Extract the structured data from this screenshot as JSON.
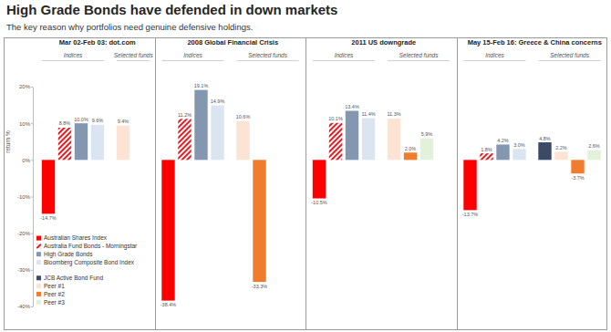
{
  "chart_data": {
    "type": "bar",
    "title": "High Grade Bonds have defended in down markets",
    "subtitle": "The key reason why portfolios need genuine defensive holdings.",
    "y_label": "return %",
    "categories": [
      "Mar 02-Feb 03: dot.com",
      "2008 Global Financial Crisis",
      "2011 US downgrade",
      "May 15-Feb 16: Greece & China concerns"
    ],
    "series": [
      {
        "name": "Australian Shares Index",
        "group": "Indices",
        "color": "#ff0000",
        "values": [
          -14.7,
          -38.4,
          -10.5,
          -13.7
        ],
        "value_labels": [
          "-14.7%",
          "-38.4%",
          "-10.5%",
          "-13.7%"
        ]
      },
      {
        "name": "Australia Fund Bonds - Morningstar",
        "group": "Indices",
        "color": "#e8191f",
        "marker": "hatch",
        "values": [
          8.8,
          11.2,
          10.1,
          1.8
        ],
        "value_labels": [
          "8.8%",
          "11.2%",
          "10.1%",
          "1.8%"
        ]
      },
      {
        "name": "High Grade Bonds",
        "group": "Indices",
        "color": "#8497b0",
        "values": [
          10.0,
          19.1,
          13.4,
          4.2
        ],
        "value_labels": [
          "10.0%",
          "19.1%",
          "13.4%",
          "4.2%"
        ]
      },
      {
        "name": "Bloomberg Composite Bond Index",
        "group": "Indices",
        "color": "#dbe5f1",
        "values": [
          9.6,
          14.9,
          11.4,
          3.0
        ],
        "value_labels": [
          "9.6%",
          "14.9%",
          "11.4%",
          "3.0%"
        ]
      },
      {
        "name": "JCB Active Bond Fund",
        "group": "Selected funds",
        "color": "#3b4a66",
        "values": [
          null,
          null,
          null,
          4.8
        ],
        "value_labels": [
          null,
          null,
          null,
          "4.8%"
        ]
      },
      {
        "name": "Peer #1",
        "group": "Selected funds",
        "color": "#fde3d4",
        "values": [
          9.4,
          10.6,
          11.3,
          2.2
        ],
        "value_labels": [
          "9.4%",
          "10.6%",
          "11.3%",
          "2.2%"
        ]
      },
      {
        "name": "Peer #2",
        "group": "Selected funds",
        "color": "#f07c2e",
        "values": [
          null,
          -33.3,
          2.0,
          -3.7
        ],
        "value_labels": [
          null,
          "-33.3%",
          "2.0%",
          "-3.7%"
        ]
      },
      {
        "name": "Peer #3",
        "group": "Selected funds",
        "color": "#e3f1da",
        "values": [
          null,
          null,
          5.9,
          2.6
        ],
        "value_labels": [
          null,
          null,
          "5.9%",
          "2.6%"
        ]
      }
    ],
    "ylim": [
      -40,
      20
    ],
    "yticks": [
      {
        "value": -40,
        "label": "-40%"
      },
      {
        "value": -30,
        "label": "-30%"
      },
      {
        "value": -20,
        "label": "-20%"
      },
      {
        "value": -10,
        "label": "-10%"
      },
      {
        "value": 0,
        "label": "0%"
      },
      {
        "value": 10,
        "label": "10%"
      },
      {
        "value": 20,
        "label": "20%"
      }
    ],
    "grid": false,
    "legend": "lower left",
    "data_labels": true
  }
}
